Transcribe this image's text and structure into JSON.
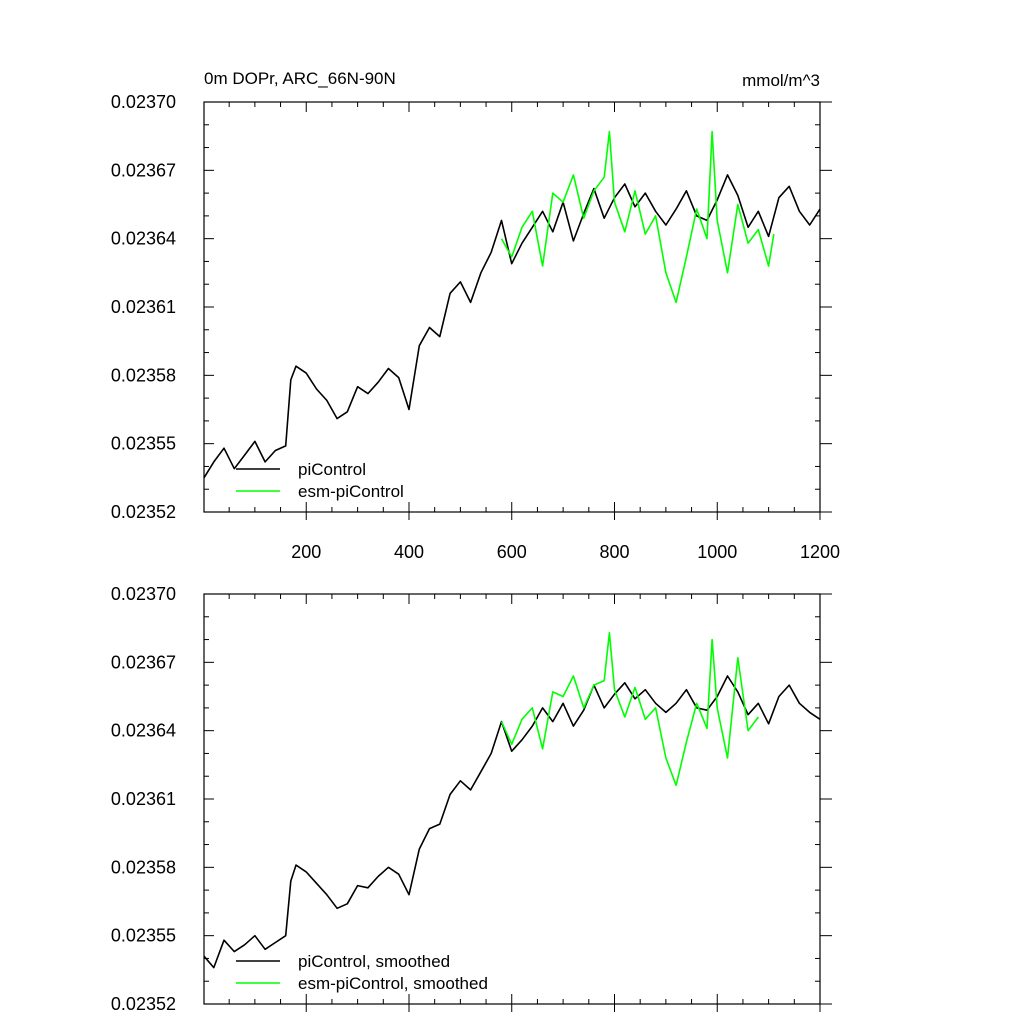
{
  "title": "0m DOPr, ARC_66N-90N",
  "units": "mmol/m^3",
  "colors": {
    "piControl": "#000000",
    "esmPiControl": "#00ff00",
    "axis": "#000000"
  },
  "chart_data": [
    {
      "type": "line",
      "title": "0m DOPr, ARC_66N-90N",
      "units_label": "mmol/m^3",
      "xlim": [
        1,
        1200
      ],
      "ylim": [
        0.02352,
        0.0237
      ],
      "xticks": [
        200,
        400,
        600,
        800,
        1000,
        1200
      ],
      "xtick_labels": [
        "200",
        "400",
        "600",
        "800",
        "1000",
        "1200"
      ],
      "yticks": [
        0.02352,
        0.02355,
        0.02358,
        0.02361,
        0.02364,
        0.02367,
        0.0237
      ],
      "ytick_labels": [
        "0.02352",
        "0.02355",
        "0.02358",
        "0.02361",
        "0.02364",
        "0.02367",
        "0.02370"
      ],
      "legend_position": "bottom-left",
      "series": [
        {
          "name": "piControl",
          "color": "#000000",
          "x": [
            1,
            20,
            40,
            60,
            80,
            100,
            120,
            140,
            160,
            170,
            180,
            200,
            220,
            240,
            260,
            280,
            300,
            320,
            340,
            360,
            380,
            400,
            420,
            440,
            460,
            480,
            500,
            520,
            540,
            560,
            580,
            600,
            620,
            640,
            660,
            680,
            700,
            720,
            740,
            760,
            780,
            800,
            820,
            840,
            860,
            880,
            900,
            920,
            940,
            960,
            980,
            1000,
            1020,
            1040,
            1060,
            1080,
            1100,
            1120,
            1140,
            1160,
            1180,
            1200
          ],
          "y": [
            0.023535,
            0.023542,
            0.023548,
            0.023539,
            0.023545,
            0.023551,
            0.023542,
            0.023547,
            0.023549,
            0.023578,
            0.023584,
            0.023581,
            0.023574,
            0.023569,
            0.023561,
            0.023564,
            0.023575,
            0.023572,
            0.023577,
            0.023583,
            0.023579,
            0.023565,
            0.023593,
            0.023601,
            0.023597,
            0.023616,
            0.023621,
            0.023612,
            0.023625,
            0.023634,
            0.023648,
            0.023629,
            0.023638,
            0.023645,
            0.023652,
            0.023643,
            0.023656,
            0.023639,
            0.023651,
            0.023662,
            0.023649,
            0.023658,
            0.023664,
            0.023654,
            0.02366,
            0.023652,
            0.023646,
            0.023653,
            0.023661,
            0.02365,
            0.023648,
            0.023657,
            0.023668,
            0.023659,
            0.023645,
            0.023652,
            0.023641,
            0.023658,
            0.023663,
            0.023652,
            0.023646,
            0.023653
          ]
        },
        {
          "name": "esm-piControl",
          "color": "#00ff00",
          "x": [
            580,
            600,
            620,
            640,
            660,
            680,
            700,
            720,
            740,
            760,
            780,
            790,
            800,
            820,
            840,
            860,
            880,
            900,
            920,
            940,
            960,
            980,
            990,
            1000,
            1020,
            1040,
            1060,
            1080,
            1100,
            1110
          ],
          "y": [
            0.02364,
            0.023632,
            0.023645,
            0.023652,
            0.023628,
            0.02366,
            0.023656,
            0.023668,
            0.023649,
            0.023661,
            0.023667,
            0.023687,
            0.023656,
            0.023643,
            0.023661,
            0.023642,
            0.02365,
            0.023625,
            0.023612,
            0.023632,
            0.023653,
            0.02364,
            0.023687,
            0.023648,
            0.023625,
            0.023655,
            0.023638,
            0.023644,
            0.023628,
            0.023642
          ]
        }
      ]
    },
    {
      "type": "line",
      "title": "",
      "xlim": [
        1,
        1200
      ],
      "ylim": [
        0.02352,
        0.0237
      ],
      "yticks": [
        0.02352,
        0.02355,
        0.02358,
        0.02361,
        0.02364,
        0.02367,
        0.0237
      ],
      "ytick_labels": [
        "0.02352",
        "0.02355",
        "0.02358",
        "0.02361",
        "0.02364",
        "0.02367",
        "0.02370"
      ],
      "legend_position": "bottom-left",
      "series": [
        {
          "name": "piControl, smoothed",
          "color": "#000000",
          "x": [
            1,
            20,
            40,
            60,
            80,
            100,
            120,
            140,
            160,
            170,
            180,
            200,
            220,
            240,
            260,
            280,
            300,
            320,
            340,
            360,
            380,
            400,
            420,
            440,
            460,
            480,
            500,
            520,
            540,
            560,
            580,
            600,
            620,
            640,
            660,
            680,
            700,
            720,
            740,
            760,
            780,
            800,
            820,
            840,
            860,
            880,
            900,
            920,
            940,
            960,
            980,
            1000,
            1020,
            1040,
            1060,
            1080,
            1100,
            1120,
            1140,
            1160,
            1180,
            1200
          ],
          "y": [
            0.023541,
            0.023536,
            0.023548,
            0.023543,
            0.023546,
            0.02355,
            0.023544,
            0.023547,
            0.02355,
            0.023574,
            0.023581,
            0.023578,
            0.023573,
            0.023568,
            0.023562,
            0.023564,
            0.023572,
            0.023571,
            0.023576,
            0.02358,
            0.023577,
            0.023568,
            0.023588,
            0.023597,
            0.023599,
            0.023612,
            0.023618,
            0.023614,
            0.023622,
            0.02363,
            0.023644,
            0.023631,
            0.023636,
            0.023642,
            0.02365,
            0.023644,
            0.023652,
            0.023642,
            0.023649,
            0.02366,
            0.02365,
            0.023656,
            0.023661,
            0.023654,
            0.023658,
            0.023652,
            0.023648,
            0.023652,
            0.023658,
            0.02365,
            0.023649,
            0.023655,
            0.023664,
            0.023657,
            0.023647,
            0.023652,
            0.023643,
            0.023655,
            0.02366,
            0.023652,
            0.023648,
            0.023645
          ]
        },
        {
          "name": "esm-piControl, smoothed",
          "color": "#00ff00",
          "x": [
            580,
            600,
            620,
            640,
            660,
            680,
            700,
            720,
            740,
            760,
            780,
            790,
            800,
            820,
            840,
            860,
            880,
            900,
            920,
            940,
            960,
            980,
            990,
            1000,
            1020,
            1040,
            1060,
            1080
          ],
          "y": [
            0.023644,
            0.023634,
            0.023645,
            0.02365,
            0.023632,
            0.023657,
            0.023655,
            0.023664,
            0.02365,
            0.02366,
            0.023662,
            0.023683,
            0.023658,
            0.023646,
            0.023659,
            0.023645,
            0.02365,
            0.023628,
            0.023616,
            0.023635,
            0.023652,
            0.023641,
            0.02368,
            0.02365,
            0.023628,
            0.023672,
            0.02364,
            0.023646
          ]
        }
      ]
    }
  ]
}
